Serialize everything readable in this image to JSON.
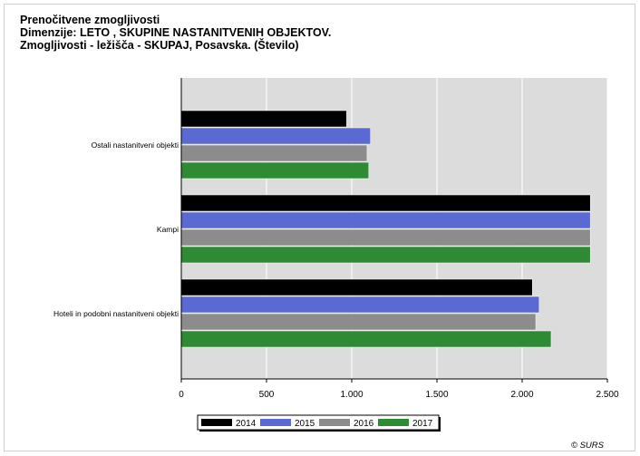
{
  "chart_data": {
    "type": "bar",
    "orientation": "horizontal",
    "title_lines": [
      "Prenočitvene zmogljivosti",
      "Dimenzije: LETO , SKUPINE NASTANITVENIH OBJEKTOV.",
      "Zmogljivosti - ležišča - SKUPAJ, Posavska. (Število)"
    ],
    "categories": [
      "Ostali nastanitveni objekti",
      "Kampi",
      "Hoteli in podobni nastanitveni objekti"
    ],
    "series": [
      {
        "name": "2014",
        "color": "#000000",
        "values": [
          970,
          2400,
          2060
        ]
      },
      {
        "name": "2015",
        "color": "#5a6ad2",
        "values": [
          1110,
          2400,
          2100
        ]
      },
      {
        "name": "2016",
        "color": "#8c8c8c",
        "values": [
          1090,
          2400,
          2080
        ]
      },
      {
        "name": "2017",
        "color": "#2e8b34",
        "values": [
          1100,
          2400,
          2170
        ]
      }
    ],
    "xlim": [
      0,
      2500
    ],
    "x_ticks": [
      0,
      500,
      1000,
      1500,
      2000,
      2500
    ],
    "x_tick_labels": [
      "0",
      "500",
      "1.000",
      "1.500",
      "2.000",
      "2.500"
    ],
    "grid": true,
    "legend_position": "bottom-center"
  },
  "copyright": "© SURS"
}
